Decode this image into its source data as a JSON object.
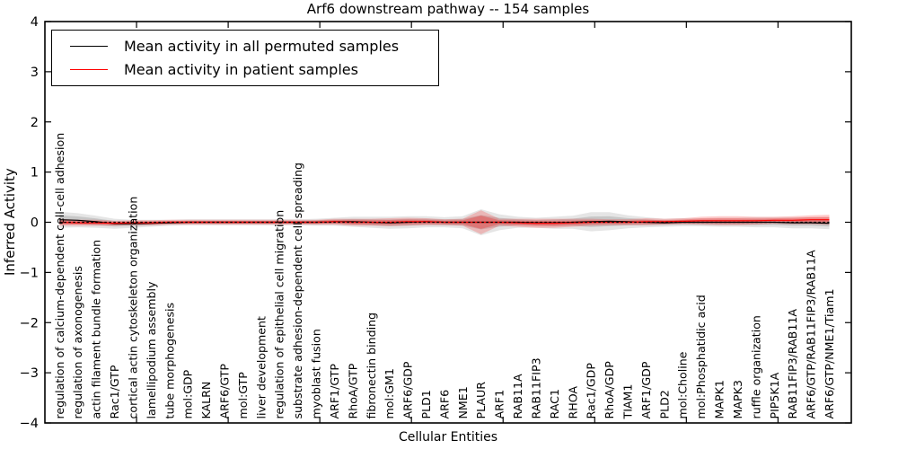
{
  "figure": {
    "title": "Arf6 downstream pathway -- 154 samples",
    "xlabel": "Cellular Entities",
    "ylabel": "Inferred Activity"
  },
  "legend": {
    "entries": [
      {
        "label": "Mean activity in all permuted samples",
        "color": "#000000"
      },
      {
        "label": "Mean activity in patient samples",
        "color": "#ff0000"
      }
    ]
  },
  "chart_data": {
    "type": "line",
    "title": "Arf6 downstream pathway -- 154 samples",
    "xlabel": "Cellular Entities",
    "ylabel": "Inferred Activity",
    "ylim": [
      -4,
      4
    ],
    "yticks": [
      -4,
      -3,
      -2,
      -1,
      0,
      1,
      2,
      3,
      4
    ],
    "xticks": [
      5,
      10,
      15,
      20,
      25,
      30,
      35,
      40
    ],
    "grid": false,
    "legend_position": "upper left",
    "zero_line": 0,
    "categories": [
      "regulation of calcium-dependent cell-cell adhesion",
      "regulation of axonogenesis",
      "actin filament bundle formation",
      "Rac1/GTP",
      "cortical actin cytoskeleton organization",
      "lamellipodium assembly",
      "tube morphogenesis",
      "mol:GDP",
      "KALRN",
      "ARF6/GTP",
      "mol:GTP",
      "liver development",
      "regulation of epithelial cell migration",
      "substrate adhesion-dependent cell spreading",
      "myoblast fusion",
      "ARF1/GTP",
      "RhoA/GTP",
      "fibronectin binding",
      "mol:GM1",
      "ARF6/GDP",
      "PLD1",
      "ARF6",
      "NME1",
      "PLAUR",
      "ARF1",
      "RAB11A",
      "RAB11FIP3",
      "RAC1",
      "RHOA",
      "Rac1/GDP",
      "RhoA/GDP",
      "TIAM1",
      "ARF1/GDP",
      "PLD2",
      "mol:Choline",
      "mol:Phosphatidic acid",
      "MAPK1",
      "MAPK3",
      "ruffle organization",
      "PIP5K1A",
      "RAB11FIP3/RAB11A",
      "ARF6/GTP/RAB11FIP3/RAB11A",
      "ARF6/GTP/NME1/Tiam1"
    ],
    "series": [
      {
        "name": "Mean activity in all permuted samples",
        "color": "#000000",
        "band_color": "#000000",
        "band_opacity": 0.1,
        "values": [
          0.05,
          0.04,
          0.01,
          -0.03,
          -0.03,
          -0.02,
          -0.01,
          0,
          0,
          0,
          0,
          0,
          0,
          0,
          0,
          0.01,
          0.01,
          0,
          -0.01,
          0,
          0.01,
          0,
          0,
          0,
          0,
          0,
          -0.01,
          -0.01,
          0,
          0.01,
          0.02,
          0.01,
          0,
          -0.01,
          0,
          0,
          0,
          0,
          0,
          0,
          -0.01,
          -0.01,
          -0.02
        ],
        "band_halfwidth": [
          0.16,
          0.14,
          0.12,
          0.1,
          0.08,
          0.07,
          0.06,
          0.06,
          0.06,
          0.06,
          0.06,
          0.06,
          0.06,
          0.06,
          0.07,
          0.08,
          0.1,
          0.11,
          0.12,
          0.12,
          0.11,
          0.1,
          0.12,
          0.26,
          0.16,
          0.11,
          0.1,
          0.12,
          0.13,
          0.19,
          0.18,
          0.13,
          0.1,
          0.08,
          0.08,
          0.08,
          0.09,
          0.09,
          0.1,
          0.1,
          0.11,
          0.11,
          0.12
        ]
      },
      {
        "name": "Mean activity in patient samples",
        "color": "#ff0000",
        "band_color": "#ff0000",
        "band_opacity": 0.2,
        "values": [
          0,
          -0.01,
          -0.01,
          -0.02,
          -0.01,
          -0.01,
          0,
          0,
          0,
          0,
          0,
          0,
          0,
          0,
          0,
          0.01,
          0,
          0,
          0,
          0.01,
          0.01,
          0,
          0,
          0,
          0,
          -0.01,
          -0.02,
          -0.02,
          -0.01,
          0,
          0,
          0,
          0.01,
          0.01,
          0.02,
          0.03,
          0.03,
          0.03,
          0.03,
          0.04,
          0.04,
          0.05,
          0.05
        ],
        "band_halfwidth": [
          0.07,
          0.06,
          0.06,
          0.05,
          0.05,
          0.05,
          0.05,
          0.05,
          0.05,
          0.05,
          0.05,
          0.05,
          0.05,
          0.05,
          0.05,
          0.06,
          0.07,
          0.07,
          0.08,
          0.08,
          0.07,
          0.06,
          0.07,
          0.24,
          0.07,
          0.08,
          0.09,
          0.09,
          0.08,
          0.07,
          0.06,
          0.06,
          0.07,
          0.06,
          0.06,
          0.08,
          0.09,
          0.09,
          0.08,
          0.07,
          0.08,
          0.09,
          0.1
        ]
      }
    ]
  }
}
